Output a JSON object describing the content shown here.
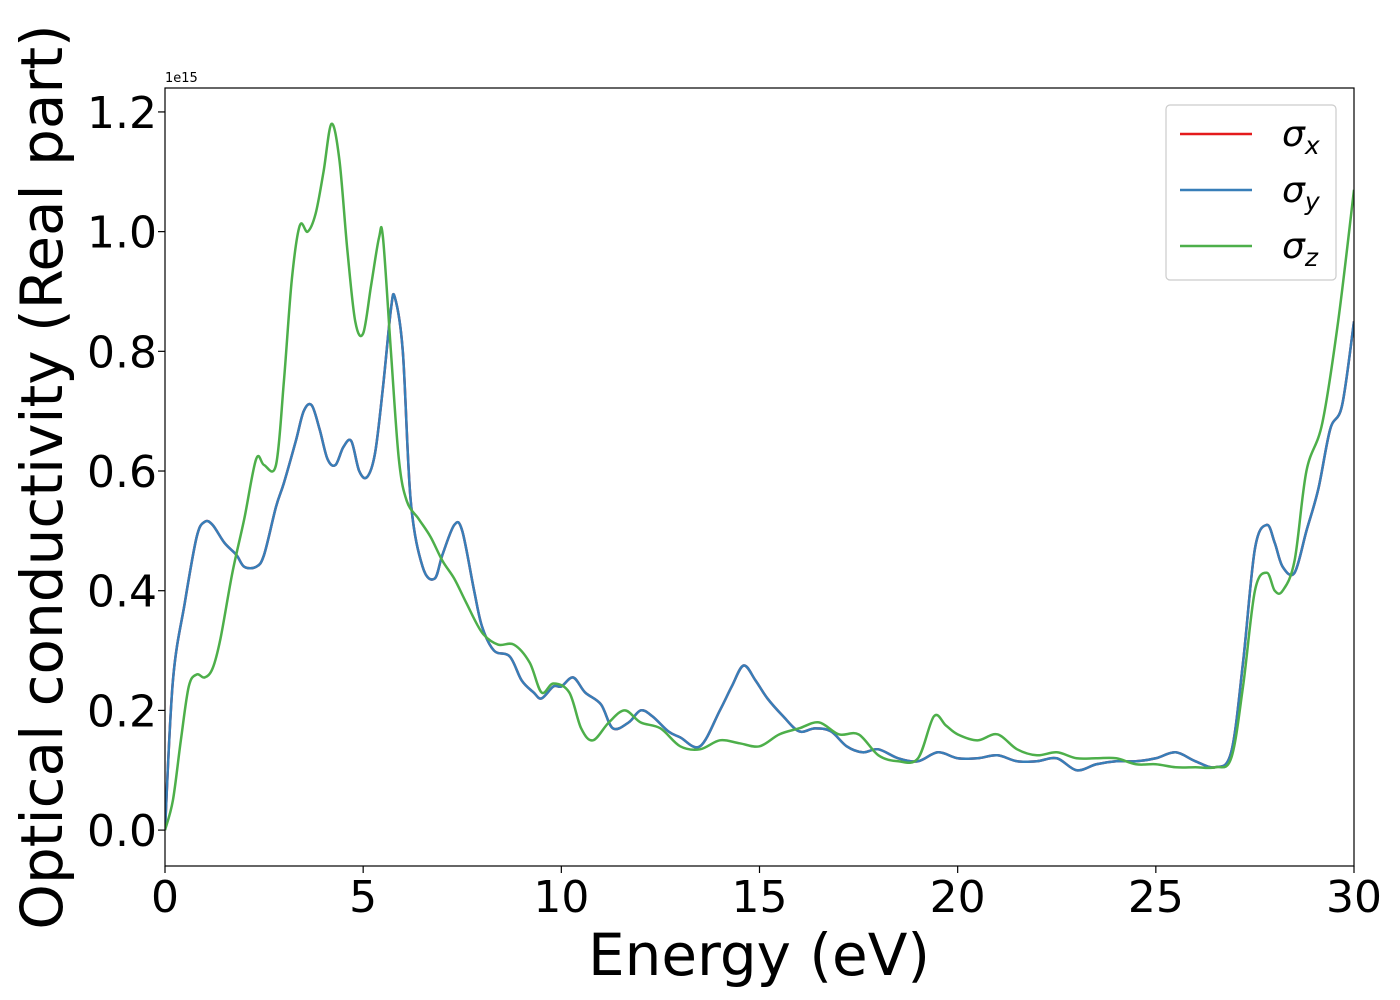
{
  "chart_data": {
    "type": "line",
    "xlabel": "Energy (eV)",
    "ylabel": "Optical conductivity (Real part)",
    "y_offset_label": "1e15",
    "xlim": [
      0,
      30
    ],
    "ylim": [
      -0.06,
      1.24
    ],
    "x_ticks": [
      0,
      5,
      10,
      15,
      20,
      25,
      30
    ],
    "x_tick_labels": [
      "0",
      "5",
      "10",
      "15",
      "20",
      "25",
      "30"
    ],
    "y_ticks": [
      0.0,
      0.2,
      0.4,
      0.6,
      0.8,
      1.0,
      1.2
    ],
    "y_tick_labels": [
      "0.0",
      "0.2",
      "0.4",
      "0.6",
      "0.8",
      "1.0",
      "1.2"
    ],
    "grid": false,
    "legend_position": "top-right",
    "series": [
      {
        "name": "σ_x",
        "symbol": "σ",
        "subscript": "x",
        "color": "#e41a1c",
        "x": [
          0,
          0.2,
          0.5,
          0.8,
          1.0,
          1.2,
          1.5,
          1.8,
          2.0,
          2.3,
          2.5,
          2.8,
          3.0,
          3.3,
          3.5,
          3.7,
          3.9,
          4.1,
          4.3,
          4.5,
          4.7,
          4.9,
          5.1,
          5.3,
          5.5,
          5.7,
          5.8,
          6.0,
          6.2,
          6.5,
          6.8,
          7.0,
          7.3,
          7.5,
          7.8,
          8.0,
          8.3,
          8.7,
          9.0,
          9.3,
          9.5,
          9.8,
          10.0,
          10.3,
          10.6,
          11.0,
          11.3,
          11.7,
          12.0,
          12.3,
          12.7,
          13.0,
          13.5,
          14.0,
          14.3,
          14.6,
          14.9,
          15.2,
          15.6,
          16.0,
          16.4,
          16.8,
          17.2,
          17.6,
          18.0,
          18.5,
          19.0,
          19.5,
          20.0,
          20.5,
          21.0,
          21.5,
          22.0,
          22.5,
          23.0,
          23.5,
          24.0,
          24.5,
          25.0,
          25.5,
          26.0,
          26.5,
          26.9,
          27.2,
          27.5,
          27.8,
          28.0,
          28.2,
          28.5,
          28.8,
          29.1,
          29.4,
          29.7,
          30.0
        ],
        "y": [
          0.0,
          0.25,
          0.38,
          0.49,
          0.515,
          0.51,
          0.48,
          0.46,
          0.44,
          0.44,
          0.46,
          0.54,
          0.58,
          0.65,
          0.7,
          0.71,
          0.67,
          0.62,
          0.61,
          0.64,
          0.65,
          0.6,
          0.59,
          0.63,
          0.74,
          0.87,
          0.89,
          0.8,
          0.55,
          0.44,
          0.42,
          0.46,
          0.51,
          0.5,
          0.4,
          0.34,
          0.3,
          0.29,
          0.25,
          0.23,
          0.22,
          0.24,
          0.24,
          0.255,
          0.23,
          0.21,
          0.17,
          0.18,
          0.2,
          0.19,
          0.165,
          0.155,
          0.14,
          0.2,
          0.24,
          0.275,
          0.25,
          0.22,
          0.19,
          0.165,
          0.17,
          0.165,
          0.14,
          0.13,
          0.135,
          0.12,
          0.115,
          0.13,
          0.12,
          0.12,
          0.125,
          0.115,
          0.115,
          0.12,
          0.1,
          0.11,
          0.115,
          0.115,
          0.12,
          0.13,
          0.115,
          0.105,
          0.13,
          0.28,
          0.47,
          0.51,
          0.48,
          0.44,
          0.43,
          0.5,
          0.57,
          0.67,
          0.71,
          0.85
        ]
      },
      {
        "name": "σ_y",
        "symbol": "σ",
        "subscript": "y",
        "color": "#377eb8",
        "x": [
          0,
          0.2,
          0.5,
          0.8,
          1.0,
          1.2,
          1.5,
          1.8,
          2.0,
          2.3,
          2.5,
          2.8,
          3.0,
          3.3,
          3.5,
          3.7,
          3.9,
          4.1,
          4.3,
          4.5,
          4.7,
          4.9,
          5.1,
          5.3,
          5.5,
          5.7,
          5.8,
          6.0,
          6.2,
          6.5,
          6.8,
          7.0,
          7.3,
          7.5,
          7.8,
          8.0,
          8.3,
          8.7,
          9.0,
          9.3,
          9.5,
          9.8,
          10.0,
          10.3,
          10.6,
          11.0,
          11.3,
          11.7,
          12.0,
          12.3,
          12.7,
          13.0,
          13.5,
          14.0,
          14.3,
          14.6,
          14.9,
          15.2,
          15.6,
          16.0,
          16.4,
          16.8,
          17.2,
          17.6,
          18.0,
          18.5,
          19.0,
          19.5,
          20.0,
          20.5,
          21.0,
          21.5,
          22.0,
          22.5,
          23.0,
          23.5,
          24.0,
          24.5,
          25.0,
          25.5,
          26.0,
          26.5,
          26.9,
          27.2,
          27.5,
          27.8,
          28.0,
          28.2,
          28.5,
          28.8,
          29.1,
          29.4,
          29.7,
          30.0
        ],
        "y": [
          0.0,
          0.25,
          0.38,
          0.49,
          0.515,
          0.51,
          0.48,
          0.46,
          0.44,
          0.44,
          0.46,
          0.54,
          0.58,
          0.65,
          0.7,
          0.71,
          0.67,
          0.62,
          0.61,
          0.64,
          0.65,
          0.6,
          0.59,
          0.63,
          0.74,
          0.87,
          0.89,
          0.8,
          0.55,
          0.44,
          0.42,
          0.46,
          0.51,
          0.5,
          0.4,
          0.34,
          0.3,
          0.29,
          0.25,
          0.23,
          0.22,
          0.24,
          0.24,
          0.255,
          0.23,
          0.21,
          0.17,
          0.18,
          0.2,
          0.19,
          0.165,
          0.155,
          0.14,
          0.2,
          0.24,
          0.275,
          0.25,
          0.22,
          0.19,
          0.165,
          0.17,
          0.165,
          0.14,
          0.13,
          0.135,
          0.12,
          0.115,
          0.13,
          0.12,
          0.12,
          0.125,
          0.115,
          0.115,
          0.12,
          0.1,
          0.11,
          0.115,
          0.115,
          0.12,
          0.13,
          0.115,
          0.105,
          0.13,
          0.28,
          0.47,
          0.51,
          0.48,
          0.44,
          0.43,
          0.5,
          0.57,
          0.67,
          0.71,
          0.85
        ]
      },
      {
        "name": "σ_z",
        "symbol": "σ",
        "subscript": "z",
        "color": "#4daf4a",
        "x": [
          0,
          0.2,
          0.4,
          0.6,
          0.8,
          1.0,
          1.2,
          1.4,
          1.7,
          2.0,
          2.3,
          2.5,
          2.8,
          3.0,
          3.2,
          3.4,
          3.6,
          3.8,
          4.0,
          4.2,
          4.4,
          4.6,
          4.8,
          5.0,
          5.2,
          5.4,
          5.5,
          5.7,
          5.9,
          6.1,
          6.4,
          6.7,
          7.0,
          7.3,
          7.6,
          8.0,
          8.4,
          8.8,
          9.2,
          9.5,
          9.8,
          10.2,
          10.5,
          10.8,
          11.2,
          11.6,
          12.0,
          12.5,
          13.0,
          13.5,
          14.0,
          14.5,
          15.0,
          15.5,
          16.0,
          16.5,
          17.0,
          17.5,
          18.0,
          18.5,
          19.0,
          19.4,
          19.7,
          20.0,
          20.5,
          21.0,
          21.5,
          22.0,
          22.5,
          23.0,
          23.5,
          24.0,
          24.5,
          25.0,
          25.5,
          26.0,
          26.5,
          26.9,
          27.2,
          27.5,
          27.8,
          28.0,
          28.2,
          28.5,
          28.8,
          29.2,
          29.6,
          30.0
        ],
        "y": [
          0.0,
          0.05,
          0.15,
          0.24,
          0.26,
          0.255,
          0.27,
          0.32,
          0.43,
          0.52,
          0.62,
          0.61,
          0.61,
          0.75,
          0.92,
          1.01,
          1.0,
          1.03,
          1.1,
          1.18,
          1.12,
          0.97,
          0.85,
          0.83,
          0.91,
          0.99,
          0.99,
          0.8,
          0.62,
          0.55,
          0.52,
          0.49,
          0.45,
          0.42,
          0.38,
          0.33,
          0.31,
          0.31,
          0.28,
          0.23,
          0.245,
          0.23,
          0.17,
          0.15,
          0.18,
          0.2,
          0.18,
          0.17,
          0.14,
          0.135,
          0.15,
          0.145,
          0.14,
          0.16,
          0.17,
          0.18,
          0.16,
          0.16,
          0.125,
          0.115,
          0.12,
          0.19,
          0.175,
          0.16,
          0.15,
          0.16,
          0.135,
          0.125,
          0.13,
          0.12,
          0.12,
          0.12,
          0.11,
          0.11,
          0.105,
          0.105,
          0.105,
          0.12,
          0.24,
          0.4,
          0.43,
          0.4,
          0.4,
          0.45,
          0.6,
          0.68,
          0.85,
          1.07
        ]
      }
    ]
  }
}
